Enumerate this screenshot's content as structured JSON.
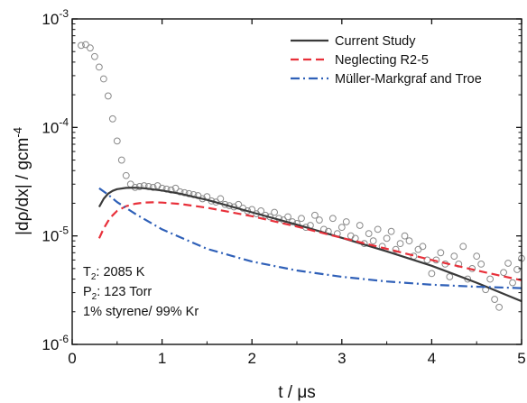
{
  "chart_data": {
    "type": "line",
    "xlabel": "t / μs",
    "ylabel": "|dρ/dx| / gcm⁻⁴",
    "ylabel_parts": {
      "base": "|dρ/dx| / gcm",
      "sup": "-4"
    },
    "xlim": [
      0,
      5
    ],
    "ylim": [
      1e-06,
      0.001
    ],
    "yscale": "log",
    "x_ticks": [
      "0",
      "1",
      "2",
      "3",
      "4",
      "5"
    ],
    "y_ticks": [
      {
        "value": 1e-06,
        "base": "10",
        "exp": "-6"
      },
      {
        "value": 1e-05,
        "base": "10",
        "exp": "-5"
      },
      {
        "value": 0.0001,
        "base": "10",
        "exp": "-4"
      },
      {
        "value": 0.001,
        "base": "10",
        "exp": "-3"
      }
    ],
    "grid": false,
    "legend_position": "top-right",
    "series": [
      {
        "name": "Current Study",
        "color": "#3a3a3a",
        "style": "solid",
        "x": [
          0.3,
          0.35,
          0.4,
          0.45,
          0.5,
          0.6,
          0.7,
          0.8,
          1.0,
          1.2,
          1.5,
          2.0,
          2.5,
          3.0,
          3.5,
          4.0,
          4.5,
          5.0
        ],
        "y": [
          1.85e-05,
          2.2e-05,
          2.45e-05,
          2.6e-05,
          2.7e-05,
          2.77e-05,
          2.78e-05,
          2.75e-05,
          2.62e-05,
          2.45e-05,
          2.15e-05,
          1.65e-05,
          1.27e-05,
          9.6e-06,
          7.2e-06,
          5.3e-06,
          3.7e-06,
          2.5e-06
        ]
      },
      {
        "name": "Neglecting R2-5",
        "color": "#e8303a",
        "style": "dashed",
        "x": [
          0.3,
          0.35,
          0.4,
          0.45,
          0.5,
          0.6,
          0.7,
          0.8,
          0.9,
          1.0,
          1.2,
          1.5,
          2.0,
          2.5,
          3.0,
          3.5,
          4.0,
          4.5,
          5.0
        ],
        "y": [
          9.5e-06,
          1.17e-05,
          1.37e-05,
          1.55e-05,
          1.7e-05,
          1.88e-05,
          1.98e-05,
          2.03e-05,
          2.04e-05,
          2.03e-05,
          1.97e-05,
          1.82e-05,
          1.52e-05,
          1.22e-05,
          9.6e-06,
          7.6e-06,
          6e-06,
          4.8e-06,
          3.9e-06
        ]
      },
      {
        "name": "Müller-Markgraf and Troe",
        "color": "#2f60b8",
        "style": "dashdot",
        "x": [
          0.3,
          0.4,
          0.5,
          0.7,
          1.0,
          1.5,
          2.0,
          2.5,
          3.0,
          3.5,
          4.0,
          4.5,
          5.0
        ],
        "y": [
          2.75e-05,
          2.4e-05,
          2.05e-05,
          1.6e-05,
          1.15e-05,
          7.6e-06,
          5.8e-06,
          4.8e-06,
          4.2e-06,
          3.8e-06,
          3.55e-06,
          3.4e-06,
          3.3e-06
        ]
      }
    ],
    "experimental": {
      "marker": "open-circle",
      "color": "#8a8a8a",
      "x": [
        0.1,
        0.15,
        0.2,
        0.25,
        0.3,
        0.35,
        0.4,
        0.45,
        0.5,
        0.55,
        0.6,
        0.65,
        0.7,
        0.75,
        0.8,
        0.85,
        0.9,
        0.95,
        1.0,
        1.05,
        1.1,
        1.15,
        1.2,
        1.25,
        1.3,
        1.35,
        1.4,
        1.45,
        1.5,
        1.55,
        1.6,
        1.65,
        1.7,
        1.75,
        1.8,
        1.85,
        1.9,
        1.95,
        2.0,
        2.05,
        2.1,
        2.15,
        2.2,
        2.25,
        2.3,
        2.35,
        2.4,
        2.45,
        2.5,
        2.55,
        2.6,
        2.65,
        2.7,
        2.75,
        2.8,
        2.85,
        2.9,
        2.95,
        3.0,
        3.05,
        3.1,
        3.15,
        3.2,
        3.25,
        3.3,
        3.35,
        3.4,
        3.45,
        3.5,
        3.55,
        3.6,
        3.65,
        3.7,
        3.75,
        3.8,
        3.85,
        3.9,
        3.95,
        4.0,
        4.05,
        4.1,
        4.15,
        4.2,
        4.25,
        4.3,
        4.35,
        4.4,
        4.45,
        4.5,
        4.55,
        4.6,
        4.65,
        4.7,
        4.75,
        4.8,
        4.85,
        4.9,
        4.95,
        5.0
      ],
      "y": [
        0.00057,
        0.00058,
        0.00054,
        0.00045,
        0.00036,
        0.00028,
        0.000195,
        0.00012,
        7.5e-05,
        5e-05,
        3.6e-05,
        3e-05,
        2.8e-05,
        2.85e-05,
        2.9e-05,
        2.85e-05,
        2.8e-05,
        2.9e-05,
        2.75e-05,
        2.7e-05,
        2.65e-05,
        2.75e-05,
        2.55e-05,
        2.5e-05,
        2.45e-05,
        2.4e-05,
        2.35e-05,
        2.2e-05,
        2.3e-05,
        2.1e-05,
        2.05e-05,
        2.2e-05,
        1.95e-05,
        1.9e-05,
        1.85e-05,
        1.95e-05,
        1.8e-05,
        1.7e-05,
        1.75e-05,
        1.6e-05,
        1.7e-05,
        1.55e-05,
        1.5e-05,
        1.65e-05,
        1.45e-05,
        1.4e-05,
        1.5e-05,
        1.35e-05,
        1.3e-05,
        1.45e-05,
        1.2e-05,
        1.25e-05,
        1.55e-05,
        1.4e-05,
        1.15e-05,
        1.1e-05,
        1.45e-05,
        1.05e-05,
        1.2e-05,
        1.35e-05,
        1e-05,
        9.5e-06,
        1.25e-05,
        8.5e-06,
        1.05e-05,
        9e-06,
        1.15e-05,
        8e-06,
        9.5e-06,
        1.1e-05,
        7.5e-06,
        8.5e-06,
        1e-05,
        9e-06,
        6.5e-06,
        7.5e-06,
        8e-06,
        6e-06,
        4.5e-06,
        6e-06,
        7e-06,
        5.5e-06,
        4.2e-06,
        6.5e-06,
        5.5e-06,
        8e-06,
        4e-06,
        5e-06,
        6.5e-06,
        5.5e-06,
        3.2e-06,
        4e-06,
        2.6e-06,
        2.2e-06,
        4.6e-06,
        5.6e-06,
        3.7e-06,
        4.9e-06,
        6.2e-06
      ]
    },
    "annotations": [
      {
        "base": "T",
        "sub": "2",
        "rest": ": 2085 K"
      },
      {
        "base": "P",
        "sub": "2",
        "rest": ": 123 Torr"
      },
      {
        "base": "1% styrene/ 99% Kr",
        "sub": "",
        "rest": ""
      }
    ]
  }
}
